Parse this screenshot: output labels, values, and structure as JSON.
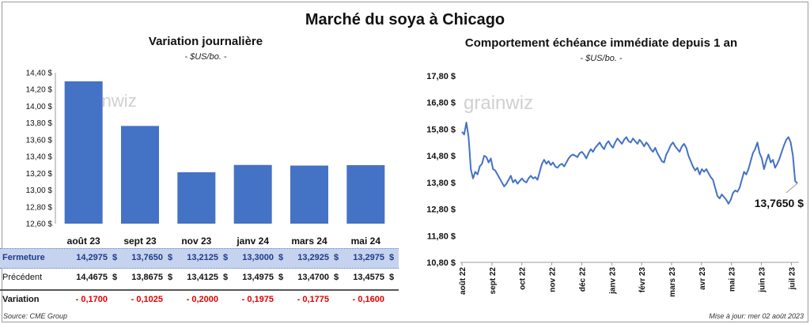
{
  "title": "Marché du soya à Chicago",
  "left_panel": {
    "title": "Variation journalière",
    "unit": "- $US/bo. -",
    "watermark": "grainwiz"
  },
  "right_panel": {
    "title": "Comportement échéance immédiate depuis 1 an",
    "unit": "- $US/bo. -",
    "watermark": "grainwiz",
    "callout": "13,7650 $"
  },
  "table": {
    "rows": [
      {
        "label": "Fermeture",
        "values": [
          "14,2975",
          "13,7650",
          "13,2125",
          "13,3000",
          "13,2925",
          "13,2975"
        ],
        "currency": "$"
      },
      {
        "label": "Précédent",
        "values": [
          "14,4675",
          "13,8675",
          "13,4125",
          "13,4975",
          "13,4700",
          "13,4575"
        ],
        "currency": "$"
      },
      {
        "label": "Variation",
        "values": [
          "- 0,1700",
          "- 0,1025",
          "- 0,2000",
          "- 0,1975",
          "- 0,1775",
          "- 0,1600"
        ],
        "currency": ""
      }
    ]
  },
  "footer": {
    "source": "Source: CME Group",
    "updated": "Mise à jour: mer 02 août 2023"
  },
  "colors": {
    "bar": "#4472c4",
    "line": "#4472c4",
    "close_row_bg": "#c5d3ee",
    "negative": "#e10000"
  },
  "chart_data": [
    {
      "type": "bar",
      "title": "Variation journalière",
      "categories": [
        "août 23",
        "sept 23",
        "nov 23",
        "janv 24",
        "mars 24",
        "mai 24"
      ],
      "values": [
        14.2975,
        13.765,
        13.2125,
        13.3,
        13.2925,
        13.2975
      ],
      "ylim": [
        12.6,
        14.4
      ],
      "yticks": [
        "12,60 $",
        "12,80 $",
        "13,00 $",
        "13,20 $",
        "13,40 $",
        "13,60 $",
        "13,80 $",
        "14,00 $",
        "14,20 $",
        "14,40 $"
      ],
      "grid": false
    },
    {
      "type": "line",
      "title": "Comportement échéance immédiate depuis 1 an",
      "ylim": [
        10.8,
        17.8
      ],
      "yticks": [
        "10,80 $",
        "11,80 $",
        "12,80 $",
        "13,80 $",
        "14,80 $",
        "15,80 $",
        "16,80 $",
        "17,80 $"
      ],
      "xticks": [
        "août 22",
        "sept 22",
        "oct 22",
        "nov 22",
        "déc 22",
        "janv 23",
        "févr 23",
        "mars 23",
        "avr 23",
        "mai 23",
        "juin 23",
        "juil 23"
      ],
      "series": [
        {
          "values": [
            15.7,
            15.6,
            16.05,
            15.5,
            14.3,
            13.95,
            14.2,
            14.1,
            14.4,
            14.5,
            14.8,
            14.75,
            14.55,
            14.7,
            14.3,
            14.25,
            14.1,
            13.95,
            13.8,
            13.65,
            13.75,
            13.9,
            14.05,
            13.8,
            13.9,
            13.75,
            13.85,
            13.95,
            13.85,
            13.8,
            13.95,
            14.05,
            13.95,
            14.0,
            13.9,
            14.2,
            14.5,
            14.65,
            14.5,
            14.6,
            14.45,
            14.55,
            14.4,
            14.35,
            14.45,
            14.5,
            14.4,
            14.55,
            14.7,
            14.8,
            14.85,
            14.8,
            14.75,
            14.9,
            14.95,
            14.85,
            14.7,
            14.9,
            15.05,
            14.95,
            15.1,
            15.2,
            15.3,
            15.15,
            15.05,
            15.25,
            15.35,
            15.2,
            15.1,
            15.3,
            15.45,
            15.35,
            15.25,
            15.4,
            15.5,
            15.35,
            15.3,
            15.45,
            15.35,
            15.25,
            15.4,
            15.3,
            15.15,
            15.3,
            15.2,
            15.05,
            14.95,
            15.1,
            14.9,
            14.75,
            14.6,
            14.55,
            14.85,
            15.0,
            15.2,
            15.3,
            15.15,
            15.05,
            14.95,
            15.15,
            15.25,
            15.1,
            14.8,
            14.6,
            14.4,
            14.25,
            14.35,
            14.1,
            14.3,
            14.2,
            14.3,
            14.15,
            14.0,
            13.9,
            13.6,
            13.3,
            13.2,
            13.35,
            13.25,
            13.15,
            13.0,
            13.15,
            13.4,
            13.5,
            13.45,
            13.6,
            13.9,
            14.2,
            14.1,
            14.3,
            14.6,
            14.9,
            15.05,
            15.3,
            14.9,
            14.7,
            14.3,
            14.6,
            14.85,
            14.55,
            14.65,
            14.35,
            14.5,
            14.7,
            14.95,
            15.2,
            15.4,
            15.5,
            15.3,
            14.8,
            13.85,
            13.765
          ]
        }
      ]
    }
  ]
}
